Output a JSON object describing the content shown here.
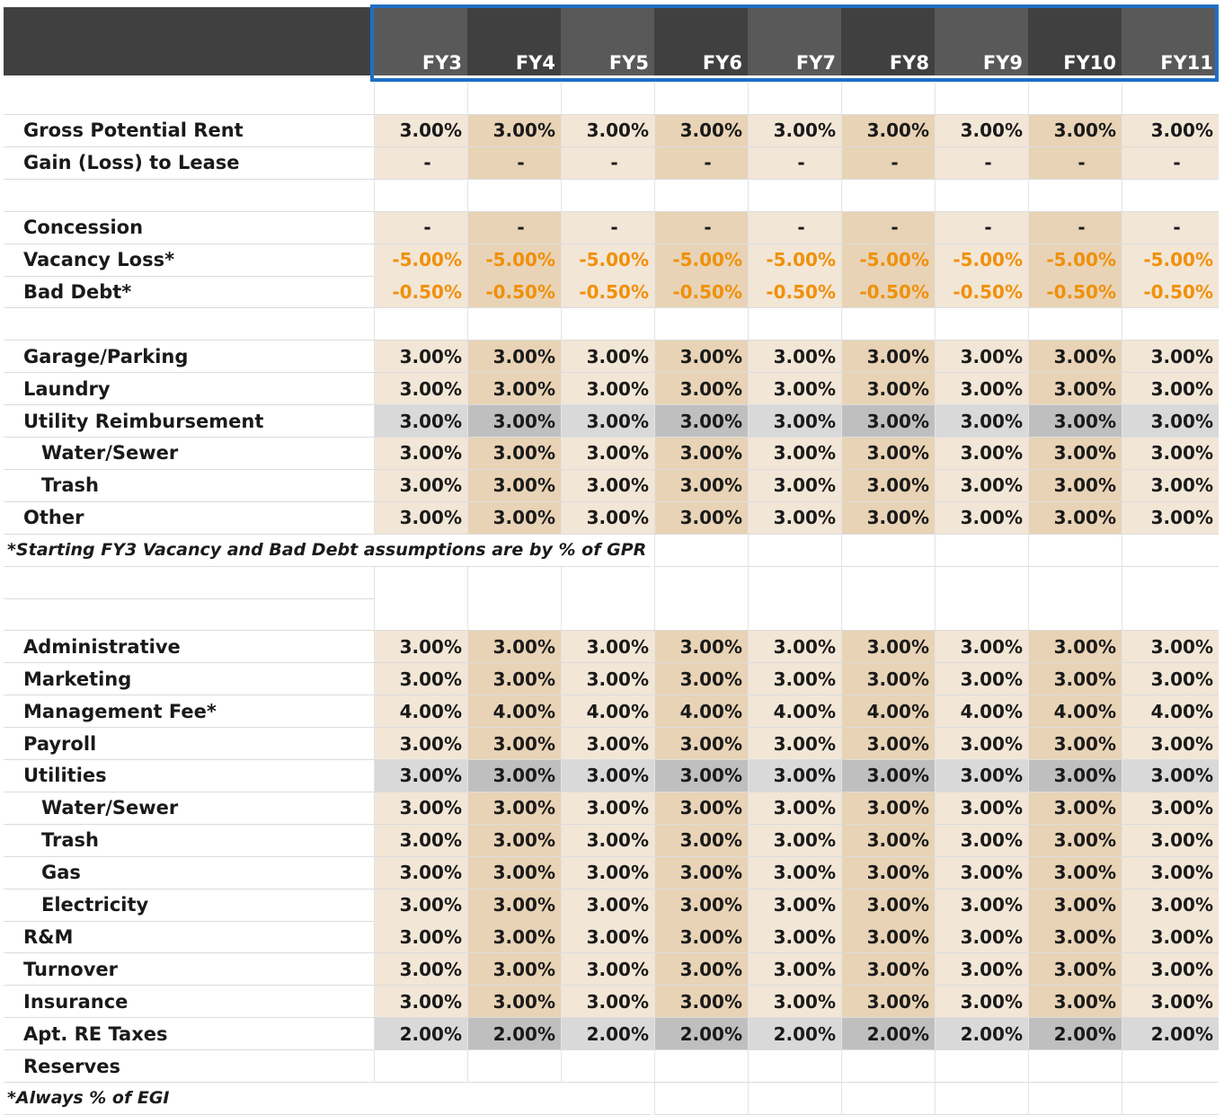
{
  "columns": [
    "FY3",
    "FY4",
    "FY5",
    "FY6",
    "FY7",
    "FY8",
    "FY9",
    "FY10",
    "FY11"
  ],
  "colors": {
    "header_frame": "#1f6fc5",
    "negative_text": "#f0900a",
    "light_tan": "#f2e6d6",
    "dark_tan": "#e8d3b6",
    "light_gray": "#d9d9d9",
    "dark_gray": "#bfbfbf"
  },
  "rows": [
    {
      "kind": "blank"
    },
    {
      "kind": "data",
      "label": "Gross Potential Rent",
      "value": "3.00%",
      "style": "tan"
    },
    {
      "kind": "data",
      "label": "Gain (Loss) to Lease",
      "value": "-",
      "style": "tan"
    },
    {
      "kind": "blank"
    },
    {
      "kind": "data",
      "label": "Concession",
      "value": "-",
      "style": "tan"
    },
    {
      "kind": "data",
      "label": "Vacancy Loss*",
      "value": "-5.00%",
      "style": "tan",
      "negative": true
    },
    {
      "kind": "data",
      "label": "Bad Debt*",
      "value": "-0.50%",
      "style": "tan",
      "negative": true
    },
    {
      "kind": "blank"
    },
    {
      "kind": "data",
      "label": "Garage/Parking",
      "value": "3.00%",
      "style": "tan"
    },
    {
      "kind": "data",
      "label": "Laundry",
      "value": "3.00%",
      "style": "tan"
    },
    {
      "kind": "data",
      "label": "Utility Reimbursement",
      "value": "3.00%",
      "style": "gray"
    },
    {
      "kind": "data",
      "label": "Water/Sewer",
      "value": "3.00%",
      "style": "tan",
      "indent": true
    },
    {
      "kind": "data",
      "label": "Trash",
      "value": "3.00%",
      "style": "tan",
      "indent": true
    },
    {
      "kind": "data",
      "label": "Other",
      "value": "3.00%",
      "style": "tan"
    },
    {
      "kind": "note",
      "label": "*Starting FY3 Vacancy and Bad Debt assumptions are by % of GPR"
    },
    {
      "kind": "blank"
    },
    {
      "kind": "blank"
    },
    {
      "kind": "data",
      "label": "Administrative",
      "value": "3.00%",
      "style": "tan"
    },
    {
      "kind": "data",
      "label": "Marketing",
      "value": "3.00%",
      "style": "tan"
    },
    {
      "kind": "data",
      "label": "Management Fee*",
      "value": "4.00%",
      "style": "tan"
    },
    {
      "kind": "data",
      "label": "Payroll",
      "value": "3.00%",
      "style": "tan"
    },
    {
      "kind": "data",
      "label": "Utilities",
      "value": "3.00%",
      "style": "gray"
    },
    {
      "kind": "data",
      "label": "Water/Sewer",
      "value": "3.00%",
      "style": "tan",
      "indent": true
    },
    {
      "kind": "data",
      "label": "Trash",
      "value": "3.00%",
      "style": "tan",
      "indent": true
    },
    {
      "kind": "data",
      "label": "Gas",
      "value": "3.00%",
      "style": "tan",
      "indent": true
    },
    {
      "kind": "data",
      "label": "Electricity",
      "value": "3.00%",
      "style": "tan",
      "indent": true
    },
    {
      "kind": "data",
      "label": "R&M",
      "value": "3.00%",
      "style": "tan"
    },
    {
      "kind": "data",
      "label": "Turnover",
      "value": "3.00%",
      "style": "tan"
    },
    {
      "kind": "data",
      "label": "Insurance",
      "value": "3.00%",
      "style": "tan"
    },
    {
      "kind": "data",
      "label": "Apt. RE Taxes",
      "value": "2.00%",
      "style": "gray"
    },
    {
      "kind": "data",
      "label": "Reserves",
      "value": "",
      "style": "empty"
    },
    {
      "kind": "note",
      "label": "*Always % of EGI"
    }
  ]
}
